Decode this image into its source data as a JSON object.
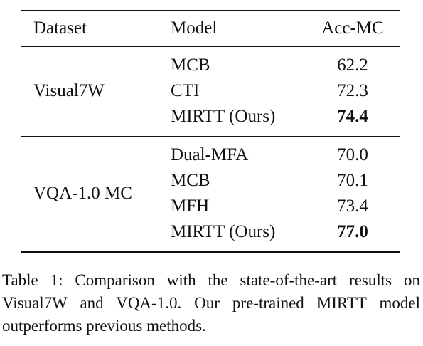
{
  "table": {
    "header": [
      "Dataset",
      "Model",
      "Acc-MC"
    ],
    "groups": [
      {
        "dataset": "Visual7W",
        "rows": [
          {
            "model": "MCB",
            "acc": "62.2",
            "best": false
          },
          {
            "model": "CTI",
            "acc": "72.3",
            "best": false
          },
          {
            "model": "MIRTT (Ours)",
            "acc": "74.4",
            "best": true
          }
        ]
      },
      {
        "dataset": "VQA-1.0 MC",
        "rows": [
          {
            "model": "Dual-MFA",
            "acc": "70.0",
            "best": false
          },
          {
            "model": "MCB",
            "acc": "70.1",
            "best": false
          },
          {
            "model": "MFH",
            "acc": "73.4",
            "best": false
          },
          {
            "model": "MIRTT (Ours)",
            "acc": "77.0",
            "best": true
          }
        ]
      }
    ]
  },
  "caption": "Table 1: Comparison with the state-of-the-art results on Visual7W and VQA-1.0. Our pre-trained MIRTT model outperforms previous methods."
}
